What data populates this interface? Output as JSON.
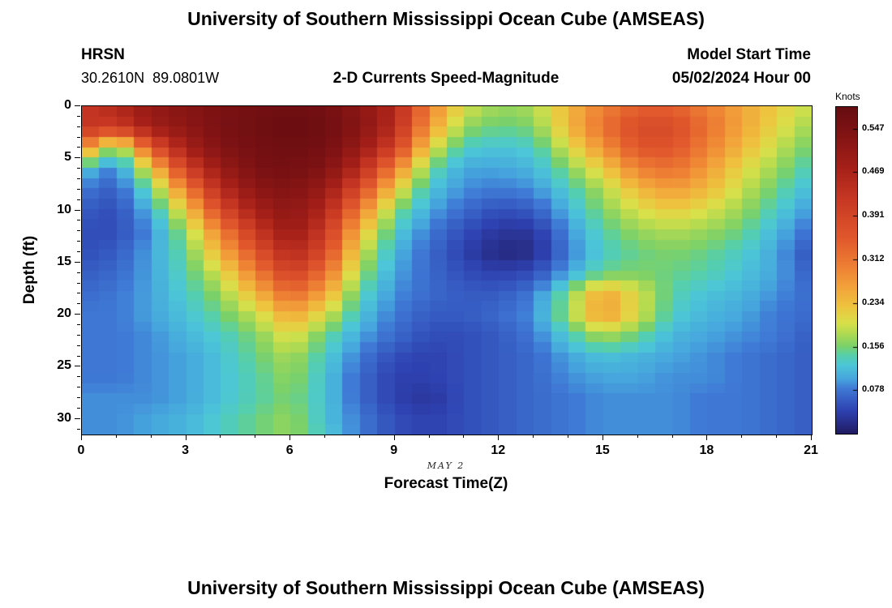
{
  "header": {
    "main_title": "University of Southern Mississippi Ocean Cube (AMSEAS)",
    "station_id": "HRSN",
    "coordinates": "30.2610N  89.0801W",
    "plot_title": "2-D Currents Speed-Magnitude",
    "model_start_label": "Model Start Time",
    "model_start_value": "05/02/2024 Hour 00"
  },
  "footer": {
    "next_plot_title": "University of Southern Mississippi Ocean Cube (AMSEAS)"
  },
  "chart_data": {
    "type": "heatmap",
    "title": "2-D Currents Speed-Magnitude",
    "xlabel": "Forecast Time(Z)",
    "ylabel": "Depth (ft)",
    "x_date_label": "MAY 2",
    "colorbar_label": "Knots",
    "legend_position": "right-colorbar",
    "grid": false,
    "x_range": [
      0,
      21
    ],
    "depth_range": [
      0,
      31.5
    ],
    "x_ticks": [
      0,
      3,
      6,
      9,
      12,
      15,
      18,
      21
    ],
    "y_ticks": [
      0,
      5,
      10,
      15,
      20,
      25,
      30
    ],
    "colorbar_ticks": [
      0.078,
      0.156,
      0.234,
      0.312,
      0.391,
      0.469,
      0.547
    ],
    "value_range": [
      0,
      0.586
    ],
    "x_hours": [
      0,
      1,
      2,
      3,
      4,
      5,
      6,
      7,
      8,
      9,
      10,
      11,
      12,
      13,
      14,
      15,
      16,
      17,
      18,
      19,
      20,
      21
    ],
    "depths_ft": [
      0,
      2,
      4,
      6,
      8,
      10,
      12,
      14,
      16,
      18,
      20,
      22,
      24,
      26,
      28,
      30,
      32
    ],
    "values_knots": [
      [
        0.42,
        0.46,
        0.51,
        0.53,
        0.55,
        0.56,
        0.57,
        0.56,
        0.52,
        0.46,
        0.3,
        0.2,
        0.17,
        0.18,
        0.24,
        0.3,
        0.34,
        0.34,
        0.3,
        0.26,
        0.22,
        0.19
      ],
      [
        0.43,
        0.41,
        0.49,
        0.52,
        0.55,
        0.57,
        0.58,
        0.57,
        0.53,
        0.45,
        0.27,
        0.17,
        0.15,
        0.16,
        0.24,
        0.32,
        0.38,
        0.38,
        0.32,
        0.26,
        0.21,
        0.17
      ],
      [
        0.3,
        0.14,
        0.36,
        0.48,
        0.54,
        0.56,
        0.57,
        0.56,
        0.5,
        0.4,
        0.21,
        0.13,
        0.12,
        0.13,
        0.2,
        0.28,
        0.36,
        0.36,
        0.3,
        0.24,
        0.19,
        0.15
      ],
      [
        0.12,
        0.08,
        0.22,
        0.4,
        0.5,
        0.55,
        0.56,
        0.54,
        0.45,
        0.3,
        0.15,
        0.1,
        0.1,
        0.11,
        0.16,
        0.22,
        0.3,
        0.32,
        0.27,
        0.21,
        0.17,
        0.13
      ],
      [
        0.08,
        0.06,
        0.15,
        0.3,
        0.45,
        0.52,
        0.54,
        0.5,
        0.38,
        0.22,
        0.12,
        0.09,
        0.08,
        0.09,
        0.13,
        0.18,
        0.24,
        0.27,
        0.24,
        0.19,
        0.15,
        0.11
      ],
      [
        0.06,
        0.05,
        0.11,
        0.22,
        0.38,
        0.48,
        0.52,
        0.46,
        0.3,
        0.16,
        0.1,
        0.07,
        0.05,
        0.06,
        0.11,
        0.16,
        0.2,
        0.22,
        0.2,
        0.17,
        0.13,
        0.09
      ],
      [
        0.05,
        0.05,
        0.09,
        0.17,
        0.3,
        0.42,
        0.5,
        0.42,
        0.24,
        0.13,
        0.08,
        0.05,
        0.03,
        0.03,
        0.09,
        0.14,
        0.17,
        0.18,
        0.17,
        0.15,
        0.11,
        0.07
      ],
      [
        0.05,
        0.06,
        0.1,
        0.15,
        0.25,
        0.36,
        0.46,
        0.38,
        0.2,
        0.11,
        0.07,
        0.04,
        0.015,
        0.02,
        0.08,
        0.13,
        0.15,
        0.16,
        0.15,
        0.13,
        0.1,
        0.05
      ],
      [
        0.06,
        0.07,
        0.1,
        0.14,
        0.2,
        0.3,
        0.4,
        0.32,
        0.17,
        0.1,
        0.07,
        0.05,
        0.04,
        0.05,
        0.1,
        0.15,
        0.16,
        0.15,
        0.14,
        0.12,
        0.1,
        0.06
      ],
      [
        0.07,
        0.08,
        0.1,
        0.13,
        0.17,
        0.24,
        0.33,
        0.26,
        0.14,
        0.09,
        0.07,
        0.06,
        0.06,
        0.08,
        0.16,
        0.26,
        0.2,
        0.14,
        0.12,
        0.11,
        0.09,
        0.07
      ],
      [
        0.08,
        0.08,
        0.1,
        0.12,
        0.15,
        0.19,
        0.26,
        0.2,
        0.12,
        0.08,
        0.06,
        0.06,
        0.07,
        0.09,
        0.17,
        0.27,
        0.2,
        0.13,
        0.11,
        0.1,
        0.08,
        0.07
      ],
      [
        0.08,
        0.08,
        0.09,
        0.11,
        0.13,
        0.16,
        0.21,
        0.15,
        0.1,
        0.07,
        0.05,
        0.05,
        0.06,
        0.08,
        0.13,
        0.18,
        0.15,
        0.11,
        0.1,
        0.09,
        0.08,
        0.06
      ],
      [
        0.08,
        0.08,
        0.09,
        0.1,
        0.12,
        0.15,
        0.18,
        0.13,
        0.08,
        0.05,
        0.04,
        0.05,
        0.06,
        0.07,
        0.1,
        0.12,
        0.11,
        0.1,
        0.09,
        0.08,
        0.07,
        0.06
      ],
      [
        0.08,
        0.08,
        0.09,
        0.1,
        0.12,
        0.14,
        0.17,
        0.12,
        0.07,
        0.04,
        0.04,
        0.05,
        0.06,
        0.07,
        0.09,
        0.1,
        0.1,
        0.09,
        0.09,
        0.08,
        0.07,
        0.06
      ],
      [
        0.09,
        0.09,
        0.09,
        0.1,
        0.12,
        0.14,
        0.16,
        0.12,
        0.07,
        0.04,
        0.03,
        0.05,
        0.06,
        0.07,
        0.08,
        0.09,
        0.09,
        0.09,
        0.08,
        0.08,
        0.07,
        0.06
      ],
      [
        0.09,
        0.09,
        0.1,
        0.11,
        0.13,
        0.15,
        0.17,
        0.12,
        0.08,
        0.05,
        0.04,
        0.05,
        0.06,
        0.07,
        0.08,
        0.09,
        0.09,
        0.09,
        0.08,
        0.08,
        0.07,
        0.06
      ],
      [
        0.09,
        0.09,
        0.1,
        0.11,
        0.13,
        0.15,
        0.17,
        0.13,
        0.08,
        0.05,
        0.04,
        0.05,
        0.06,
        0.07,
        0.08,
        0.09,
        0.09,
        0.09,
        0.08,
        0.08,
        0.07,
        0.06
      ]
    ],
    "colormap_stops": [
      [
        0.0,
        "#201a60"
      ],
      [
        0.07,
        "#2e41b0"
      ],
      [
        0.14,
        "#3f7ad6"
      ],
      [
        0.17,
        "#46a6dd"
      ],
      [
        0.21,
        "#4cc6d8"
      ],
      [
        0.24,
        "#55cfac"
      ],
      [
        0.27,
        "#7bd169"
      ],
      [
        0.31,
        "#b3da50"
      ],
      [
        0.34,
        "#d8e04a"
      ],
      [
        0.39,
        "#eec43e"
      ],
      [
        0.45,
        "#f2a23a"
      ],
      [
        0.51,
        "#ee8134"
      ],
      [
        0.6,
        "#e1582c"
      ],
      [
        0.72,
        "#c73723"
      ],
      [
        0.82,
        "#a41f18"
      ],
      [
        0.94,
        "#7a1113"
      ],
      [
        1.0,
        "#660d10"
      ]
    ]
  }
}
